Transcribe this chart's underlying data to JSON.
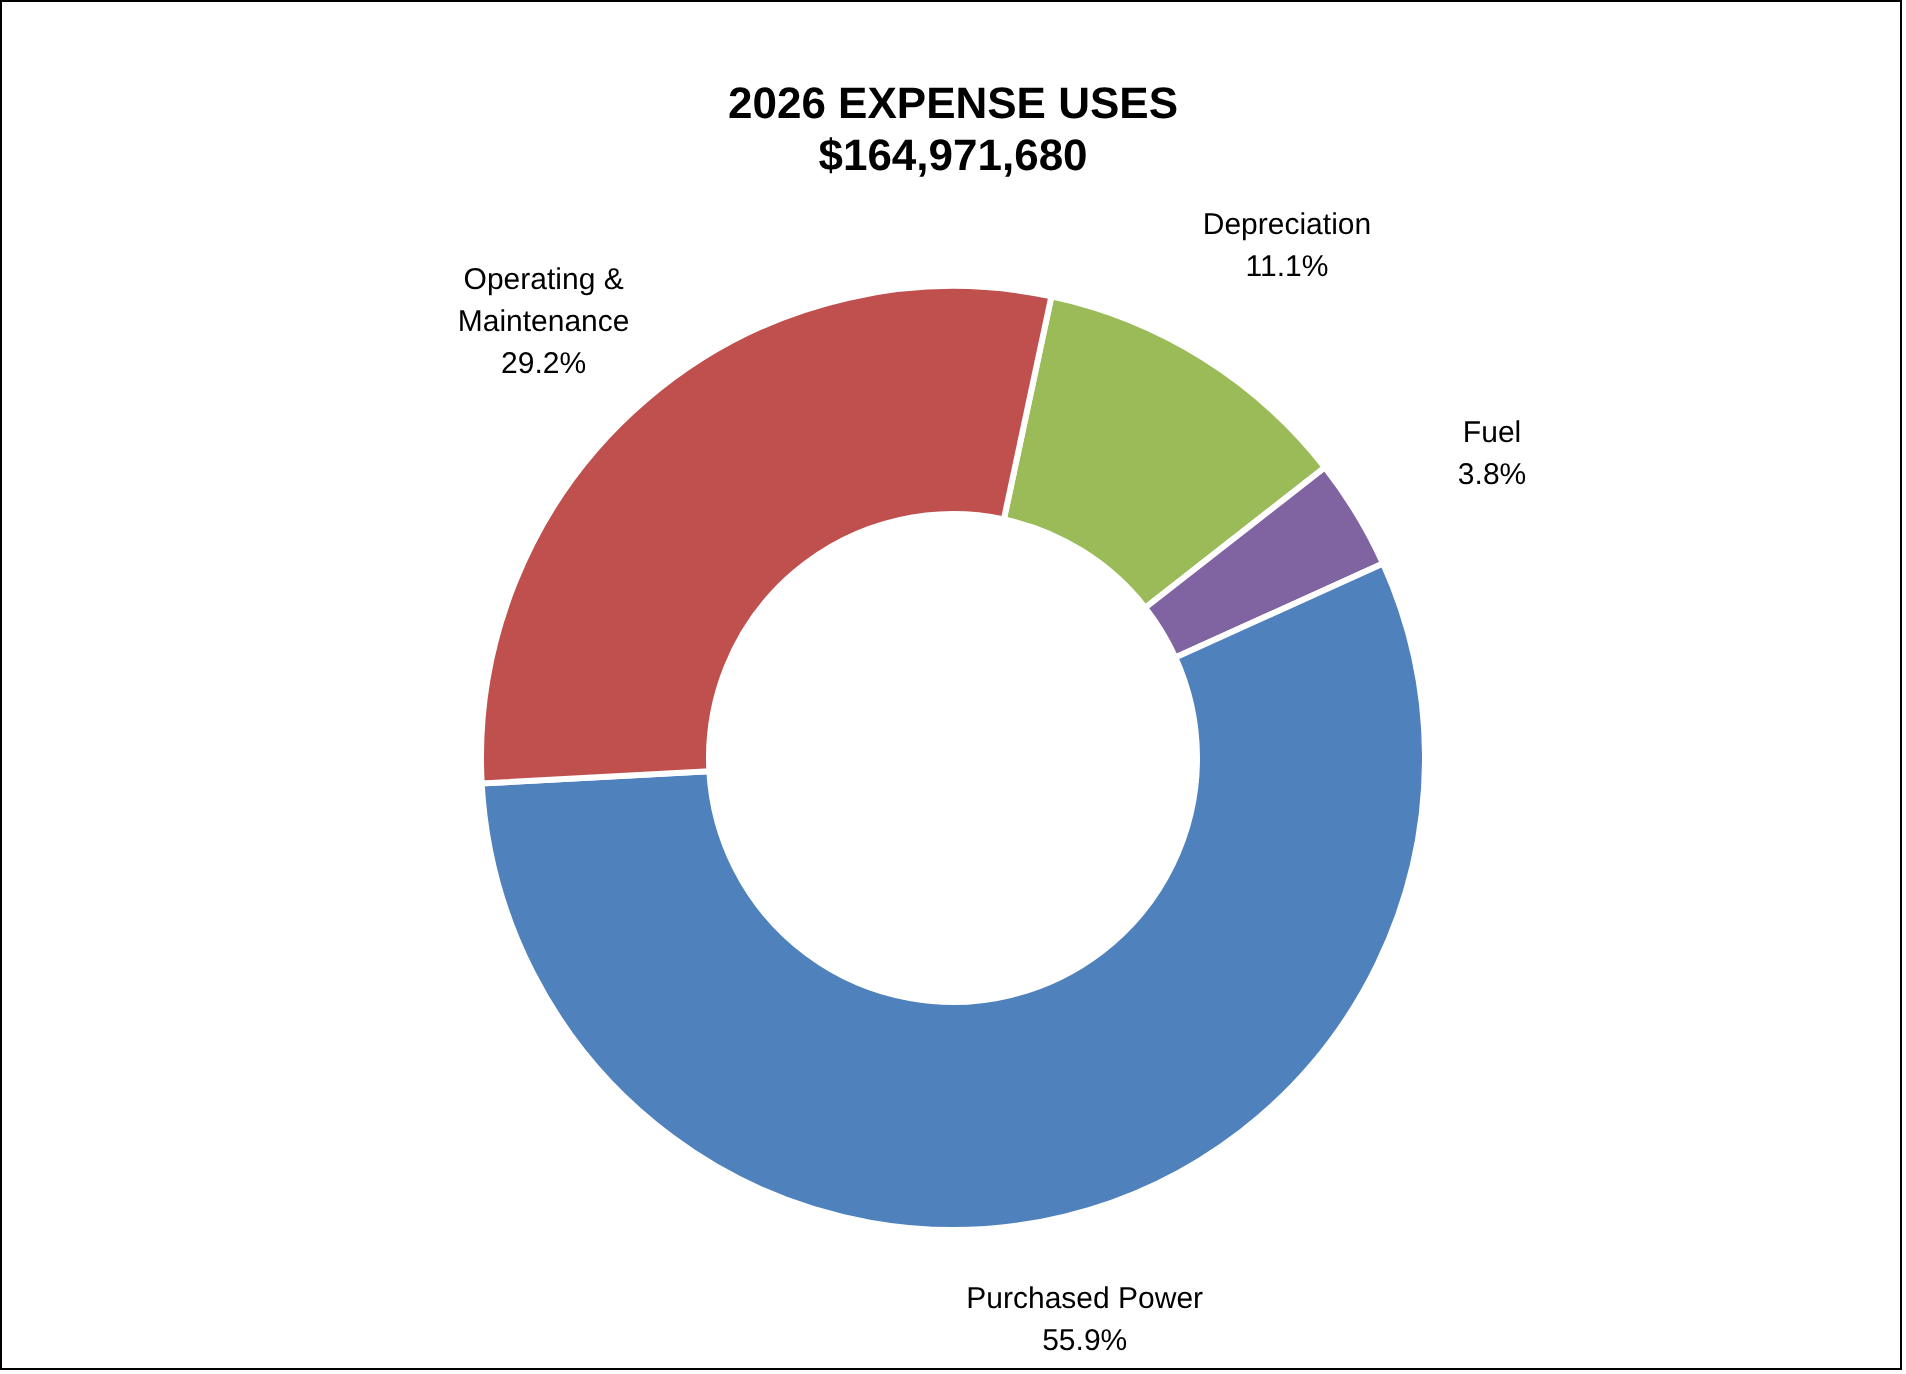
{
  "chart_data": {
    "type": "donut",
    "title": "2026 EXPENSE USES",
    "subtitle": "$164,971,680",
    "categories": [
      "Depreciation",
      "Fuel",
      "Purchased Power",
      "Operating & Maintenance"
    ],
    "values": [
      11.1,
      3.8,
      55.9,
      29.2
    ],
    "colors": [
      "#9bbb59",
      "#8064a2",
      "#4f81bd",
      "#c0504d"
    ],
    "value_labels": [
      "11.1%",
      "3.8%",
      "55.9%",
      "29.2%"
    ],
    "legend": false
  }
}
